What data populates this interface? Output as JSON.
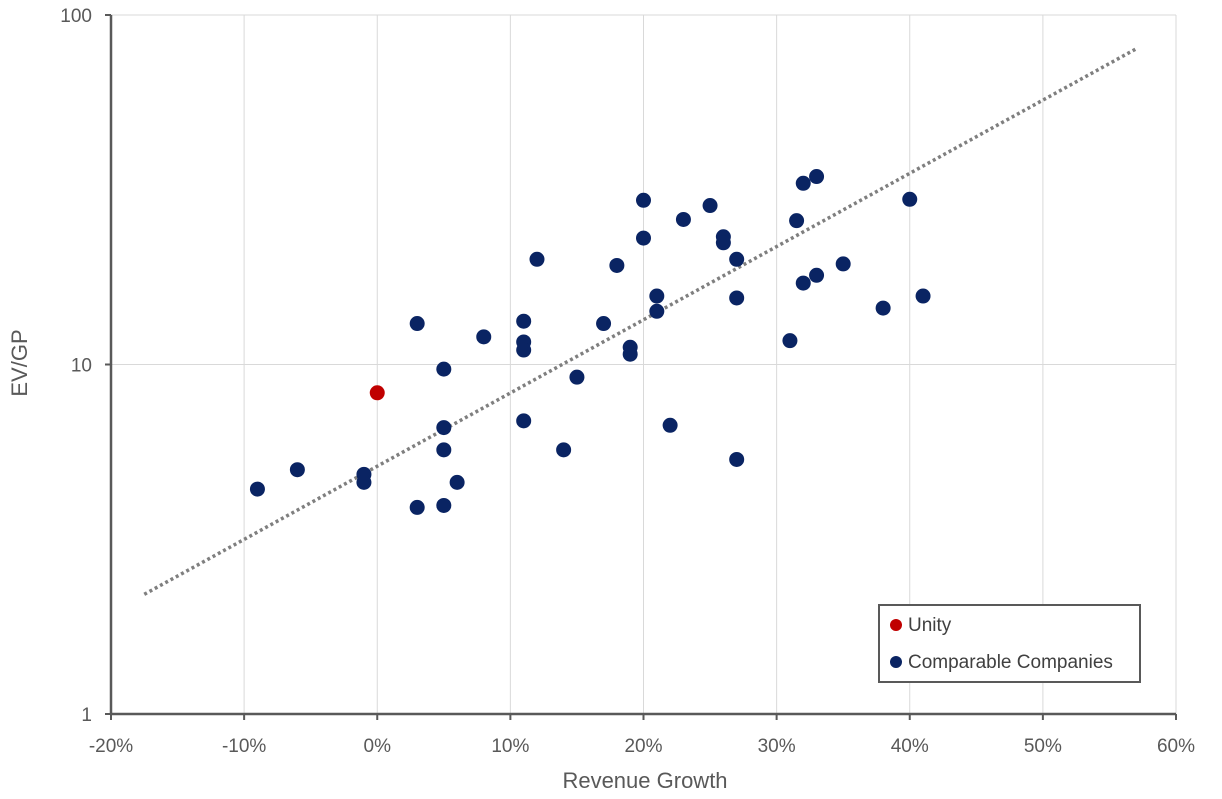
{
  "chart_data": {
    "type": "scatter",
    "xlabel": "Revenue Growth",
    "ylabel": "EV/GP",
    "x_ticks": [
      "-20%",
      "-10%",
      "0%",
      "10%",
      "20%",
      "30%",
      "40%",
      "50%",
      "60%"
    ],
    "y_ticks": [
      "1",
      "10",
      "100"
    ],
    "xlim": [
      -0.2,
      0.6
    ],
    "ylim": [
      1,
      100
    ],
    "y_scale": "log",
    "grid": true,
    "legend_position": "bottom-right",
    "series": [
      {
        "name": "Unity",
        "color": "#c00000",
        "points": [
          [
            0.0,
            8.3
          ]
        ]
      },
      {
        "name": "Comparable Companies",
        "color": "#0a2463",
        "points": [
          [
            -0.09,
            4.4
          ],
          [
            -0.06,
            5.0
          ],
          [
            -0.01,
            4.85
          ],
          [
            -0.01,
            4.6
          ],
          [
            0.03,
            13.1
          ],
          [
            0.03,
            3.9
          ],
          [
            0.05,
            9.7
          ],
          [
            0.05,
            6.6
          ],
          [
            0.05,
            5.7
          ],
          [
            0.05,
            3.95
          ],
          [
            0.06,
            4.6
          ],
          [
            0.08,
            12.0
          ],
          [
            0.11,
            13.3
          ],
          [
            0.11,
            11.6
          ],
          [
            0.11,
            11.0
          ],
          [
            0.11,
            6.9
          ],
          [
            0.12,
            20.0
          ],
          [
            0.14,
            5.7
          ],
          [
            0.15,
            9.2
          ],
          [
            0.17,
            13.1
          ],
          [
            0.18,
            19.2
          ],
          [
            0.19,
            11.2
          ],
          [
            0.19,
            10.7
          ],
          [
            0.2,
            29.5
          ],
          [
            0.2,
            23.0
          ],
          [
            0.21,
            15.7
          ],
          [
            0.21,
            14.2
          ],
          [
            0.22,
            6.7
          ],
          [
            0.23,
            26.0
          ],
          [
            0.25,
            28.5
          ],
          [
            0.26,
            23.2
          ],
          [
            0.26,
            22.3
          ],
          [
            0.27,
            20.0
          ],
          [
            0.27,
            15.5
          ],
          [
            0.27,
            5.35
          ],
          [
            0.31,
            11.7
          ],
          [
            0.315,
            25.8
          ],
          [
            0.32,
            33.0
          ],
          [
            0.32,
            17.1
          ],
          [
            0.33,
            34.5
          ],
          [
            0.33,
            18.0
          ],
          [
            0.35,
            19.4
          ],
          [
            0.38,
            14.5
          ],
          [
            0.4,
            29.7
          ],
          [
            0.41,
            15.7
          ]
        ]
      }
    ],
    "trendline": {
      "style": "dotted",
      "color": "#7f7f7f",
      "points": [
        [
          -0.175,
          2.2
        ],
        [
          0.57,
          80.0
        ]
      ]
    }
  }
}
